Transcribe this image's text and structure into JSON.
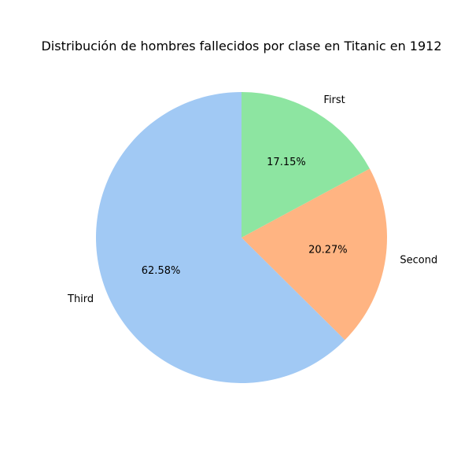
{
  "chart_data": {
    "type": "pie",
    "title": "Distribución de hombres fallecidos por clase en Titanic en 1912",
    "start_angle_deg": 90,
    "direction": "counterclockwise",
    "slices": [
      {
        "label": "Third",
        "value": 62.58,
        "pct_label": "62.58%",
        "color": "#a1c9f4"
      },
      {
        "label": "Second",
        "value": 20.27,
        "pct_label": "20.27%",
        "color": "#ffb482"
      },
      {
        "label": "First",
        "value": 17.15,
        "pct_label": "17.15%",
        "color": "#8de5a1"
      }
    ]
  }
}
